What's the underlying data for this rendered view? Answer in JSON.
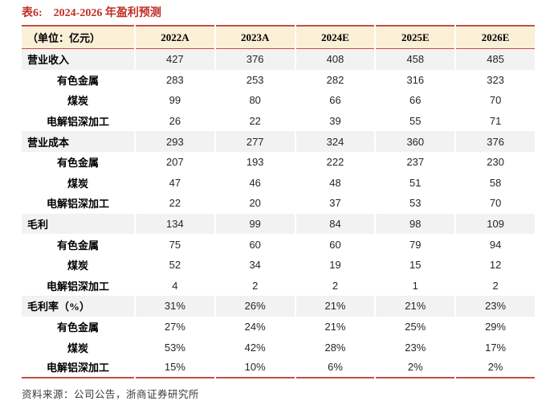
{
  "title": {
    "prefix": "表6:",
    "text": "2024-2026 年盈利预测"
  },
  "table": {
    "unit_label": "（单位：亿元）",
    "columns": [
      "2022A",
      "2023A",
      "2024E",
      "2025E",
      "2026E"
    ],
    "rows": [
      {
        "label": "营业收入",
        "level": "main",
        "values": [
          "427",
          "376",
          "408",
          "458",
          "485"
        ]
      },
      {
        "label": "有色金属",
        "level": "sub",
        "values": [
          "283",
          "253",
          "282",
          "316",
          "323"
        ]
      },
      {
        "label": "煤炭",
        "level": "sub",
        "values": [
          "99",
          "80",
          "66",
          "66",
          "70"
        ]
      },
      {
        "label": "电解铝深加工",
        "level": "sub",
        "values": [
          "26",
          "22",
          "39",
          "55",
          "71"
        ]
      },
      {
        "label": "营业成本",
        "level": "main",
        "values": [
          "293",
          "277",
          "324",
          "360",
          "376"
        ]
      },
      {
        "label": "有色金属",
        "level": "sub",
        "values": [
          "207",
          "193",
          "222",
          "237",
          "230"
        ]
      },
      {
        "label": "煤炭",
        "level": "sub",
        "values": [
          "47",
          "46",
          "48",
          "51",
          "58"
        ]
      },
      {
        "label": "电解铝深加工",
        "level": "sub",
        "values": [
          "22",
          "20",
          "37",
          "53",
          "70"
        ]
      },
      {
        "label": "毛利",
        "level": "main",
        "values": [
          "134",
          "99",
          "84",
          "98",
          "109"
        ]
      },
      {
        "label": "有色金属",
        "level": "sub",
        "values": [
          "75",
          "60",
          "60",
          "79",
          "94"
        ]
      },
      {
        "label": "煤炭",
        "level": "sub",
        "values": [
          "52",
          "34",
          "19",
          "15",
          "12"
        ]
      },
      {
        "label": "电解铝深加工",
        "level": "sub",
        "values": [
          "4",
          "2",
          "2",
          "1",
          "2"
        ]
      },
      {
        "label": "毛利率（%）",
        "level": "main",
        "values": [
          "31%",
          "26%",
          "21%",
          "21%",
          "23%"
        ]
      },
      {
        "label": "有色金属",
        "level": "sub",
        "values": [
          "27%",
          "24%",
          "21%",
          "25%",
          "29%"
        ]
      },
      {
        "label": "煤炭",
        "level": "sub",
        "values": [
          "53%",
          "42%",
          "28%",
          "23%",
          "17%"
        ]
      },
      {
        "label": "电解铝深加工",
        "level": "sub",
        "values": [
          "15%",
          "10%",
          "6%",
          "2%",
          "2%"
        ]
      }
    ]
  },
  "footer": {
    "source_text": "资料来源：公司公告，浙商证券研究所"
  },
  "colors": {
    "title_red": "#C02E26",
    "border_red": "#C0504A",
    "header_bg": "#FBEFD6",
    "stripe_gray": "#F2F2F2"
  },
  "chart_data": {
    "type": "table",
    "title": "表6: 2024-2026 年盈利预测",
    "unit": "亿元",
    "categories": [
      "2022A",
      "2023A",
      "2024E",
      "2025E",
      "2026E"
    ],
    "series": [
      {
        "name": "营业收入",
        "values": [
          427,
          376,
          408,
          458,
          485
        ]
      },
      {
        "name": "营业收入-有色金属",
        "values": [
          283,
          253,
          282,
          316,
          323
        ]
      },
      {
        "name": "营业收入-煤炭",
        "values": [
          99,
          80,
          66,
          66,
          70
        ]
      },
      {
        "name": "营业收入-电解铝深加工",
        "values": [
          26,
          22,
          39,
          55,
          71
        ]
      },
      {
        "name": "营业成本",
        "values": [
          293,
          277,
          324,
          360,
          376
        ]
      },
      {
        "name": "营业成本-有色金属",
        "values": [
          207,
          193,
          222,
          237,
          230
        ]
      },
      {
        "name": "营业成本-煤炭",
        "values": [
          47,
          46,
          48,
          51,
          58
        ]
      },
      {
        "name": "营业成本-电解铝深加工",
        "values": [
          22,
          20,
          37,
          53,
          70
        ]
      },
      {
        "name": "毛利",
        "values": [
          134,
          99,
          84,
          98,
          109
        ]
      },
      {
        "name": "毛利-有色金属",
        "values": [
          75,
          60,
          60,
          79,
          94
        ]
      },
      {
        "name": "毛利-煤炭",
        "values": [
          52,
          34,
          19,
          15,
          12
        ]
      },
      {
        "name": "毛利-电解铝深加工",
        "values": [
          4,
          2,
          2,
          1,
          2
        ]
      },
      {
        "name": "毛利率(%)",
        "values": [
          "31%",
          "26%",
          "21%",
          "21%",
          "23%"
        ]
      },
      {
        "name": "毛利率-有色金属",
        "values": [
          "27%",
          "24%",
          "21%",
          "25%",
          "29%"
        ]
      },
      {
        "name": "毛利率-煤炭",
        "values": [
          "53%",
          "42%",
          "28%",
          "23%",
          "17%"
        ]
      },
      {
        "name": "毛利率-电解铝深加工",
        "values": [
          "15%",
          "10%",
          "6%",
          "2%",
          "2%"
        ]
      }
    ]
  }
}
